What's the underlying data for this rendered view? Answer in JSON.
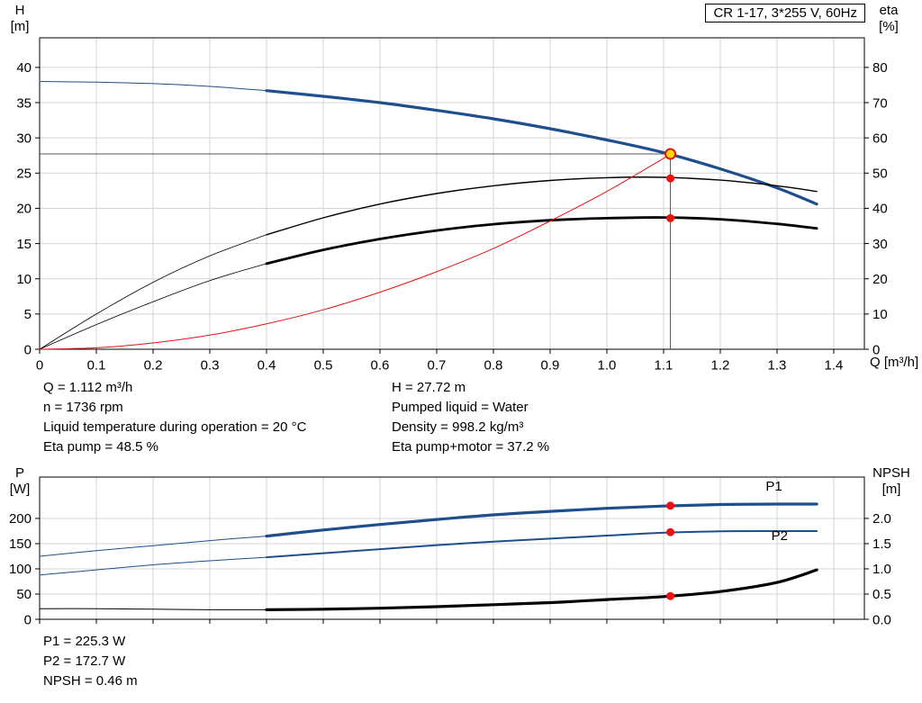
{
  "title_box": "CR 1-17, 3*255 V, 60Hz",
  "colors": {
    "blue": "#1f4e8c",
    "black": "#000000",
    "red": "#e01212",
    "marker_red": "#ee1111",
    "duty_yellow": "#ffd800",
    "grid": "#d4d4d4",
    "crosshair": "#555555"
  },
  "info_top": {
    "left": [
      "Q = 1.112 m³/h",
      "n = 1736 rpm",
      "Liquid temperature during operation = 20 °C",
      "Eta pump = 48.5 %"
    ],
    "right": [
      "H = 27.72 m",
      "Pumped liquid = Water",
      "Density = 998.2 kg/m³",
      "Eta pump+motor = 37.2 %"
    ]
  },
  "info_bottom": [
    "P1 = 225.3 W",
    "P2 = 172.7 W",
    "NPSH = 0.46 m"
  ],
  "chart_data": [
    {
      "type": "line",
      "title": "CR 1-17, 3*255 V, 60Hz",
      "xlabel": "Q [m³/h]",
      "xlim": [
        0,
        1.454
      ],
      "show_x_tick_labels": true,
      "x_ticks": [
        {
          "v": 0,
          "t": "0"
        },
        {
          "v": 0.1,
          "t": "0.1"
        },
        {
          "v": 0.2,
          "t": "0.2"
        },
        {
          "v": 0.3,
          "t": "0.3"
        },
        {
          "v": 0.4,
          "t": "0.4"
        },
        {
          "v": 0.5,
          "t": "0.5"
        },
        {
          "v": 0.6,
          "t": "0.6"
        },
        {
          "v": 0.7,
          "t": "0.7"
        },
        {
          "v": 0.8,
          "t": "0.8"
        },
        {
          "v": 0.9,
          "t": "0.9"
        },
        {
          "v": 1.0,
          "t": "1.0"
        },
        {
          "v": 1.1,
          "t": "1.1"
        },
        {
          "v": 1.2,
          "t": "1.2"
        },
        {
          "v": 1.3,
          "t": "1.3"
        },
        {
          "v": 1.4,
          "t": "1.4"
        }
      ],
      "y_left": {
        "label": "H",
        "unit": "[m]",
        "lim": [
          0,
          44.2
        ],
        "ticks": [
          {
            "v": 0,
            "t": "0"
          },
          {
            "v": 5,
            "t": "5"
          },
          {
            "v": 10,
            "t": "10"
          },
          {
            "v": 15,
            "t": "15"
          },
          {
            "v": 20,
            "t": "20"
          },
          {
            "v": 25,
            "t": "25"
          },
          {
            "v": 30,
            "t": "30"
          },
          {
            "v": 35,
            "t": "35"
          },
          {
            "v": 40,
            "t": "40"
          }
        ]
      },
      "y_right": {
        "label": "eta",
        "unit": "[%]",
        "lim": [
          0,
          88.4
        ],
        "ticks": [
          {
            "v": 0,
            "t": "0"
          },
          {
            "v": 10,
            "t": "10"
          },
          {
            "v": 20,
            "t": "20"
          },
          {
            "v": 30,
            "t": "30"
          },
          {
            "v": 40,
            "t": "40"
          },
          {
            "v": 50,
            "t": "50"
          },
          {
            "v": 60,
            "t": "60"
          },
          {
            "v": 70,
            "t": "70"
          },
          {
            "v": 80,
            "t": "80"
          }
        ]
      },
      "series": [
        {
          "name": "head-curve",
          "color": "blue",
          "axis": "left",
          "width": 3.2,
          "thin_until": 0.4,
          "thin_width": 1,
          "x": [
            0,
            0.1,
            0.2,
            0.3,
            0.4,
            0.5,
            0.6,
            0.7,
            0.8,
            0.9,
            1.0,
            1.1,
            1.2,
            1.3,
            1.37
          ],
          "y": [
            38.0,
            37.9,
            37.7,
            37.3,
            36.7,
            35.9,
            35.0,
            33.9,
            32.7,
            31.3,
            29.7,
            27.9,
            25.6,
            22.9,
            20.6
          ]
        },
        {
          "name": "eta-pump-curve",
          "color": "black",
          "axis": "right",
          "width": 1.4,
          "thin_until": 0.4,
          "thin_width": 0.8,
          "x": [
            0,
            0.1,
            0.2,
            0.3,
            0.4,
            0.5,
            0.6,
            0.7,
            0.8,
            0.9,
            1.0,
            1.1,
            1.2,
            1.3,
            1.37
          ],
          "y": [
            0,
            10,
            19,
            26.5,
            32.5,
            37.3,
            41.2,
            44.2,
            46.4,
            47.9,
            48.7,
            48.8,
            48.0,
            46.4,
            44.8
          ]
        },
        {
          "name": "eta-pump-motor-curve",
          "color": "black",
          "axis": "right",
          "width": 2.8,
          "thin_until": 0.4,
          "thin_width": 0.8,
          "x": [
            0,
            0.1,
            0.2,
            0.3,
            0.4,
            0.5,
            0.6,
            0.7,
            0.8,
            0.9,
            1.0,
            1.1,
            1.2,
            1.3,
            1.37
          ],
          "y": [
            0,
            7,
            13.5,
            19.5,
            24.3,
            28.2,
            31.3,
            33.7,
            35.5,
            36.6,
            37.2,
            37.4,
            36.9,
            35.6,
            34.3
          ]
        },
        {
          "name": "system-curve",
          "color": "red",
          "axis": "left",
          "width": 1,
          "x": [
            0,
            0.1,
            0.2,
            0.3,
            0.4,
            0.5,
            0.6,
            0.7,
            0.8,
            0.9,
            1.0,
            1.1,
            1.112
          ],
          "y": [
            0,
            0.2,
            0.9,
            2.0,
            3.6,
            5.6,
            8.1,
            11.0,
            14.3,
            18.2,
            22.4,
            27.1,
            27.72
          ]
        }
      ],
      "markers": [
        {
          "axis": "right",
          "q": 1.112,
          "v": 48.5
        },
        {
          "axis": "right",
          "q": 1.112,
          "v": 37.2
        }
      ],
      "duty_point": {
        "q": 1.112,
        "v": 27.72
      }
    },
    {
      "type": "line",
      "xlabel": "",
      "xlim": [
        0,
        1.454
      ],
      "show_x_tick_labels": false,
      "x_ticks": [
        {
          "v": 0,
          "t": "0"
        },
        {
          "v": 0.1,
          "t": "0.1"
        },
        {
          "v": 0.2,
          "t": "0.2"
        },
        {
          "v": 0.3,
          "t": "0.3"
        },
        {
          "v": 0.4,
          "t": "0.4"
        },
        {
          "v": 0.5,
          "t": "0.5"
        },
        {
          "v": 0.6,
          "t": "0.6"
        },
        {
          "v": 0.7,
          "t": "0.7"
        },
        {
          "v": 0.8,
          "t": "0.8"
        },
        {
          "v": 0.9,
          "t": "0.9"
        },
        {
          "v": 1.0,
          "t": "1.0"
        },
        {
          "v": 1.1,
          "t": "1.1"
        },
        {
          "v": 1.2,
          "t": "1.2"
        },
        {
          "v": 1.3,
          "t": "1.3"
        },
        {
          "v": 1.4,
          "t": "1.4"
        }
      ],
      "y_left": {
        "label": "P",
        "unit": "[W]",
        "lim": [
          0,
          282
        ],
        "ticks": [
          {
            "v": 0,
            "t": "0"
          },
          {
            "v": 50,
            "t": "50"
          },
          {
            "v": 100,
            "t": "100"
          },
          {
            "v": 150,
            "t": "150"
          },
          {
            "v": 200,
            "t": "200"
          }
        ]
      },
      "y_right": {
        "label": "NPSH",
        "unit": "[m]",
        "lim": [
          0,
          2.82
        ],
        "ticks": [
          {
            "v": 0,
            "t": "0.0"
          },
          {
            "v": 0.5,
            "t": "0.5"
          },
          {
            "v": 1,
            "t": "1.0"
          },
          {
            "v": 1.5,
            "t": "1.5"
          },
          {
            "v": 2,
            "t": "2.0"
          }
        ]
      },
      "series": [
        {
          "name": "p1-curve",
          "color": "blue",
          "axis": "left",
          "width": 3.2,
          "thin_until": 0.4,
          "thin_width": 1,
          "label": {
            "t": "P1",
            "q": 1.28,
            "v": 255
          },
          "x": [
            0,
            0.1,
            0.2,
            0.3,
            0.4,
            0.5,
            0.6,
            0.7,
            0.8,
            0.9,
            1.0,
            1.1,
            1.2,
            1.3,
            1.37
          ],
          "y": [
            125,
            136,
            146,
            156,
            165,
            177,
            188,
            198,
            207,
            214,
            220,
            224.5,
            227.5,
            228.5,
            228.5
          ]
        },
        {
          "name": "p2-curve",
          "color": "blue",
          "axis": "left",
          "width": 2,
          "thin_until": 0.4,
          "thin_width": 1,
          "label": {
            "t": "P2",
            "q": 1.29,
            "v": 157
          },
          "x": [
            0,
            0.1,
            0.2,
            0.3,
            0.4,
            0.5,
            0.6,
            0.7,
            0.8,
            0.9,
            1.0,
            1.1,
            1.2,
            1.3,
            1.37
          ],
          "y": [
            88,
            98,
            108,
            116,
            123,
            131,
            139,
            147,
            154,
            160,
            166,
            171.5,
            174.5,
            175,
            175
          ]
        },
        {
          "name": "npsh-curve",
          "color": "black",
          "axis": "right",
          "width": 3.2,
          "thin_until": 0.4,
          "thin_width": 1,
          "x": [
            0,
            0.1,
            0.2,
            0.3,
            0.4,
            0.5,
            0.6,
            0.7,
            0.8,
            0.9,
            1.0,
            1.1,
            1.2,
            1.3,
            1.37
          ],
          "y": [
            0.21,
            0.21,
            0.2,
            0.19,
            0.19,
            0.2,
            0.22,
            0.25,
            0.29,
            0.33,
            0.39,
            0.45,
            0.55,
            0.73,
            0.98
          ]
        }
      ],
      "markers": [
        {
          "axis": "left",
          "q": 1.112,
          "v": 225.3
        },
        {
          "axis": "left",
          "q": 1.112,
          "v": 172.7
        },
        {
          "axis": "right",
          "q": 1.112,
          "v": 0.46
        }
      ]
    }
  ]
}
